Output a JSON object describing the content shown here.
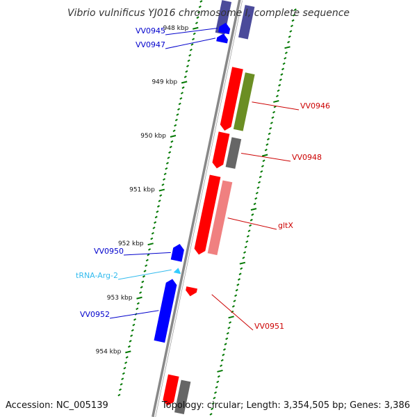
{
  "title": "Vibrio vulnificus YJ016 chromosome I, complete sequence",
  "footer": {
    "accession": "Accession: NC_005139",
    "summary": "Topology: circular; Length: 3,354,505 bp; Genes: 3,386"
  },
  "colors": {
    "forward_cds": "#0000ff",
    "reverse_cds": "#ff0000",
    "trna": "#33ccff",
    "label_forward": "#0000cc",
    "label_reverse": "#cc0000",
    "label_trna": "#33bbee",
    "backbone": "#888888",
    "tick": "#007700",
    "cog_olive": "#6b8e23",
    "cog_grey": "#666666",
    "cog_pink": "#f08080",
    "cog_purple": "#4b4b9a"
  },
  "scale": {
    "ticks": [
      {
        "label": "948 kbp",
        "kbp": 948
      },
      {
        "label": "949 kbp",
        "kbp": 949
      },
      {
        "label": "950 kbp",
        "kbp": 950
      },
      {
        "label": "951 kbp",
        "kbp": 951
      },
      {
        "label": "952 kbp",
        "kbp": 952
      },
      {
        "label": "953 kbp",
        "kbp": 953
      },
      {
        "label": "954 kbp",
        "kbp": 954
      }
    ]
  },
  "genes": {
    "forward": [
      {
        "name": "VV0945",
        "start_kbp": 947.85,
        "end_kbp": 947.98
      },
      {
        "name": "VV0947",
        "start_kbp": 948.05,
        "end_kbp": 948.15
      },
      {
        "name": "VV0950",
        "start_kbp": 951.95,
        "end_kbp": 952.2
      },
      {
        "name": "VV0952",
        "start_kbp": 952.6,
        "end_kbp": 953.7
      }
    ],
    "trna": [
      {
        "name": "tRNA-Arg-2",
        "start_kbp": 952.38,
        "end_kbp": 952.42
      }
    ],
    "reverse": [
      {
        "name": "VV0946",
        "start_kbp": 948.55,
        "end_kbp": 949.65,
        "cog": "olive"
      },
      {
        "name": "VV0948",
        "start_kbp": 949.75,
        "end_kbp": 950.35,
        "cog": "grey"
      },
      {
        "name": "gltX",
        "start_kbp": 950.55,
        "end_kbp": 951.95,
        "cog": "pink"
      },
      {
        "name": "VV0951",
        "start_kbp": 952.62,
        "end_kbp": 952.72,
        "cog": "none"
      }
    ]
  }
}
